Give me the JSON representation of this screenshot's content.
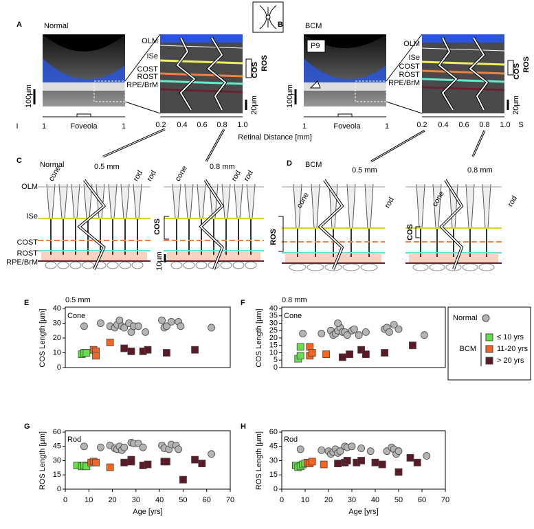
{
  "panels": {
    "A": {
      "letter": "A",
      "title": "Normal",
      "layers": [
        "OLM",
        "ISe",
        "COST",
        "ROST",
        "RPE/BrM"
      ],
      "brackets": [
        "COS",
        "ROS"
      ],
      "scale_left": "100µm",
      "scale_right": "20µm",
      "axis_left": [
        "I",
        "1",
        "Foveola",
        "1"
      ],
      "axis_right": [
        "0.2",
        "0.4",
        "0.6",
        "0.8",
        "1.0"
      ]
    },
    "B": {
      "letter": "B",
      "title": "BCM",
      "tag": "P9",
      "layers": [
        "OLM",
        "ISe",
        "COST",
        "ROST",
        "RPE/BrM"
      ],
      "brackets": [
        "COS",
        "ROS"
      ],
      "scale_left": "100µm",
      "scale_right": "20µm",
      "axis_left": [
        "1",
        "Foveola",
        "1"
      ],
      "axis_right": [
        "0.2",
        "0.4",
        "0.6",
        "0.8",
        "1.0",
        "S"
      ]
    },
    "axis_title": "Retinal Distance [mm]",
    "C": {
      "letter": "C",
      "title": "Normal",
      "distances": [
        "0.5 mm",
        "0.8 mm"
      ],
      "cells": [
        "cone",
        "rod",
        "rod",
        "cone",
        "rod",
        "rod"
      ],
      "layers": [
        "OLM",
        "ISe",
        "COST",
        "ROST",
        "RPE/BrM"
      ],
      "brackets": [
        "COS",
        "ROS"
      ],
      "scale": "10µm"
    },
    "D": {
      "letter": "D",
      "title": "BCM",
      "distances": [
        "0.5 mm",
        "0.8 mm"
      ],
      "cells": [
        "cone",
        "rod",
        "cone",
        "rod"
      ],
      "brackets": [
        "COS"
      ]
    }
  },
  "legend": {
    "group": "BCM"
  },
  "chart_data": [
    {
      "type": "scatter",
      "panel": "E",
      "subtitle": "0.5 mm",
      "title": "Cone",
      "y_label": "COS Length [µm]",
      "xlim": [
        0,
        70
      ],
      "ylim": [
        0,
        40
      ],
      "yticks": [
        0,
        10,
        20,
        30,
        40
      ],
      "series": [
        {
          "color": "#b4b4b4",
          "marker": "circle",
          "x": [
            8,
            15,
            19,
            21,
            22,
            23,
            24,
            25,
            27,
            28,
            29,
            31,
            34,
            41,
            42,
            43,
            45,
            48,
            49,
            62
          ],
          "values": [
            28,
            30,
            28,
            27,
            29,
            32,
            28,
            27,
            30,
            24,
            28,
            28,
            24,
            32,
            27,
            28,
            31,
            31,
            28,
            27
          ]
        },
        {
          "color": "#66e04a",
          "marker": "square",
          "x": [
            7,
            8,
            9
          ],
          "values": [
            9,
            10,
            10
          ]
        },
        {
          "color": "#f26522",
          "marker": "square",
          "x": [
            12,
            13,
            13,
            19
          ],
          "values": [
            12,
            11,
            8,
            17
          ]
        },
        {
          "color": "#5c1a26",
          "marker": "square",
          "x": [
            25,
            28,
            33,
            35,
            43,
            55
          ],
          "values": [
            13,
            11,
            11,
            12,
            10,
            12
          ]
        }
      ]
    },
    {
      "type": "scatter",
      "panel": "F",
      "subtitle": "0.8 mm",
      "title": "Cone",
      "y_label": "COS Length [µm]",
      "xlim": [
        0,
        70
      ],
      "ylim": [
        0,
        40
      ],
      "yticks": [
        0,
        5,
        10,
        15,
        20,
        25,
        30,
        35,
        40
      ],
      "series": [
        {
          "name": "Normal",
          "color": "#b4b4b4",
          "marker": "circle",
          "x": [
            9,
            17,
            21,
            22,
            23,
            24,
            25,
            26,
            24,
            27,
            28,
            30,
            31,
            33,
            36,
            44,
            45,
            46,
            48,
            50,
            61
          ],
          "values": [
            23,
            23,
            25,
            22,
            23,
            25,
            27,
            24,
            30,
            24,
            22,
            25,
            26,
            22,
            24,
            26,
            27,
            24,
            29,
            26,
            22
          ]
        },
        {
          "name": "≤ 10 yrs",
          "color": "#66e04a",
          "marker": "square",
          "x": [
            7,
            8,
            8
          ],
          "values": [
            6,
            8,
            14
          ]
        },
        {
          "name": "11-20 yrs",
          "color": "#f26522",
          "marker": "square",
          "x": [
            12,
            12,
            13,
            19
          ],
          "values": [
            8,
            14,
            10,
            9
          ]
        },
        {
          "name": "> 20 yrs",
          "color": "#5c1a26",
          "marker": "square",
          "x": [
            26,
            29,
            34,
            36,
            44,
            56
          ],
          "values": [
            7,
            9,
            12,
            9,
            10,
            15
          ]
        }
      ]
    },
    {
      "type": "scatter",
      "panel": "G",
      "title": "Rod",
      "y_label": "ROS Length [µm]",
      "x_label": "Age [yrs]",
      "xlim": [
        0,
        70
      ],
      "xticks": [
        0,
        10,
        20,
        30,
        40,
        50,
        60,
        70
      ],
      "ylim": [
        0,
        60
      ],
      "yticks": [
        0,
        15,
        30,
        45,
        60
      ],
      "series": [
        {
          "color": "#b4b4b4",
          "marker": "circle",
          "x": [
            8,
            15,
            19,
            21,
            22,
            23,
            24,
            25,
            28,
            29,
            31,
            33,
            41,
            42,
            44,
            45,
            47,
            48,
            62
          ],
          "values": [
            45,
            44,
            46,
            43,
            42,
            45,
            41,
            44,
            49,
            48,
            48,
            44,
            46,
            43,
            42,
            47,
            46,
            42,
            37
          ]
        },
        {
          "color": "#66e04a",
          "marker": "square",
          "x": [
            5,
            7,
            8,
            9
          ],
          "values": [
            25,
            24,
            25,
            24
          ]
        },
        {
          "color": "#f26522",
          "marker": "square",
          "x": [
            11,
            12,
            13,
            19
          ],
          "values": [
            28,
            29,
            28,
            23
          ]
        },
        {
          "color": "#5c1a26",
          "marker": "square",
          "x": [
            25,
            28,
            28,
            33,
            35,
            42,
            43,
            50,
            55,
            58
          ],
          "values": [
            28,
            31,
            29,
            25,
            26,
            29,
            29,
            10,
            31,
            27
          ]
        }
      ]
    },
    {
      "type": "scatter",
      "panel": "H",
      "title": "Rod",
      "y_label": "ROS Length [µm]",
      "x_label": "Age [yrs]",
      "xlim": [
        0,
        70
      ],
      "xticks": [
        0,
        10,
        20,
        30,
        40,
        50,
        60,
        70
      ],
      "ylim": [
        0,
        60
      ],
      "yticks": [
        0,
        15,
        30,
        45,
        60
      ],
      "series": [
        {
          "color": "#b4b4b4",
          "marker": "circle",
          "x": [
            8,
            17,
            20,
            21,
            22,
            23,
            24,
            25,
            27,
            28,
            30,
            34,
            38,
            45,
            47,
            48,
            49,
            50,
            62
          ],
          "values": [
            42,
            41,
            40,
            37,
            39,
            42,
            38,
            40,
            45,
            44,
            45,
            43,
            40,
            40,
            44,
            42,
            37,
            40,
            35
          ]
        },
        {
          "color": "#66e04a",
          "marker": "square",
          "x": [
            6,
            7,
            8,
            9,
            10
          ],
          "values": [
            25,
            23,
            24,
            26,
            27
          ]
        },
        {
          "color": "#f26522",
          "marker": "square",
          "x": [
            11,
            12,
            13,
            18
          ],
          "values": [
            28,
            27,
            29,
            26
          ]
        },
        {
          "color": "#5c1a26",
          "marker": "square",
          "x": [
            24,
            27,
            28,
            32,
            34,
            40,
            43,
            50,
            55,
            58
          ],
          "values": [
            27,
            28,
            30,
            28,
            30,
            28,
            26,
            18,
            33,
            28
          ]
        }
      ]
    }
  ]
}
